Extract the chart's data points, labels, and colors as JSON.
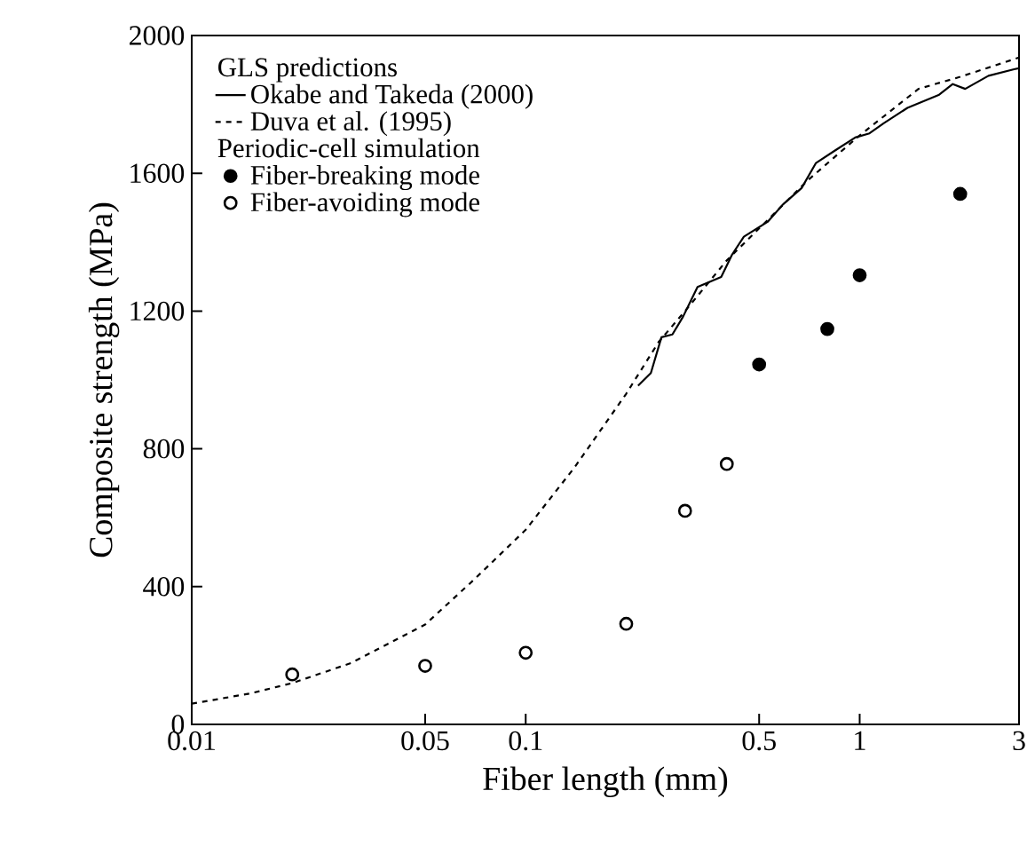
{
  "chart_data": {
    "type": "scatter",
    "xlabel": "Fiber length (mm)",
    "ylabel": "Composite strength (MPa)",
    "log": "x",
    "xlim": [
      0.01,
      3
    ],
    "ylim": [
      0,
      2000
    ],
    "xticks": [
      0.01,
      0.05,
      0.1,
      0.5,
      1,
      3
    ],
    "yticks": [
      0,
      400,
      800,
      1200,
      1600,
      2000
    ],
    "grid": false,
    "legend": "top left",
    "annotations": [
      "GLS predictions",
      "Periodic-cell simulation"
    ],
    "series": [
      {
        "name": "Okabe and Takeda (2000)",
        "type": "line",
        "line_style": "solid",
        "marker": "none",
        "color": "#000000",
        "x": [
          0.217,
          0.237,
          0.255,
          0.275,
          0.296,
          0.327,
          0.385,
          0.415,
          0.45,
          0.53,
          0.59,
          0.67,
          0.74,
          0.84,
          0.97,
          1.07,
          1.18,
          1.39,
          1.73,
          1.9,
          2.07,
          2.43,
          2.9,
          3
        ],
        "values": [
          983,
          1020,
          1124,
          1132,
          1184,
          1270,
          1299,
          1364,
          1416,
          1459,
          1510,
          1557,
          1630,
          1665,
          1704,
          1716,
          1745,
          1790,
          1828,
          1859,
          1845,
          1883,
          1902,
          1905
        ]
      },
      {
        "name": "Duva et al. (1995)",
        "type": "line",
        "line_style": "dashed",
        "marker": "none",
        "color": "#000000",
        "x": [
          0.01,
          0.015,
          0.02,
          0.03,
          0.05,
          0.07,
          0.1,
          0.14,
          0.2,
          0.25,
          0.3,
          0.4,
          0.5,
          0.7,
          1,
          1.5,
          2,
          3
        ],
        "values": [
          60,
          90,
          120,
          178,
          290,
          420,
          565,
          746,
          960,
          1110,
          1200,
          1347,
          1440,
          1580,
          1710,
          1845,
          1880,
          1936
        ]
      },
      {
        "name": "Fiber-breaking mode",
        "marker": "circle",
        "color": "#000000",
        "x": [
          0.5,
          0.8,
          1,
          2
        ],
        "values": [
          1045,
          1148,
          1304,
          1540
        ]
      },
      {
        "name": "Fiber-avoiding mode",
        "marker": "circle",
        "color": "#ffffff",
        "x": [
          0.02,
          0.05,
          0.1,
          0.2,
          0.3,
          0.4
        ],
        "values": [
          145,
          170,
          208,
          292,
          620,
          756
        ]
      }
    ]
  }
}
